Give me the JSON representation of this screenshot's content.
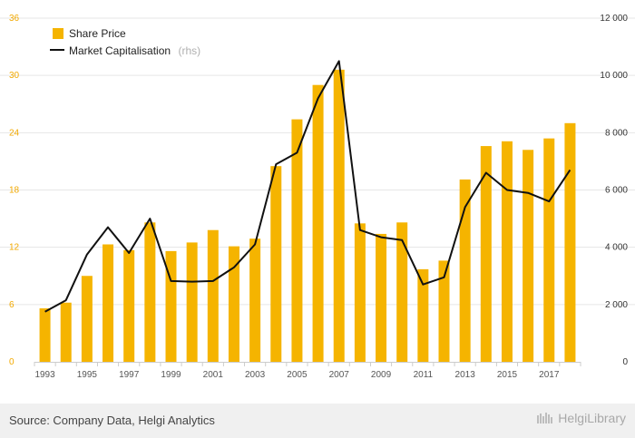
{
  "chart_data": {
    "type": "bar+line",
    "categories": [
      "1993",
      "1994",
      "1995",
      "1996",
      "1997",
      "1998",
      "1999",
      "2000",
      "2001",
      "2002",
      "2003",
      "2004",
      "2005",
      "2006",
      "2007",
      "2008",
      "2009",
      "2010",
      "2011",
      "2012",
      "2013",
      "2014",
      "2015",
      "2016",
      "2017",
      "2018"
    ],
    "x_tick_labels": [
      "1993",
      "1995",
      "1997",
      "1999",
      "2001",
      "2003",
      "2005",
      "2007",
      "2009",
      "2011",
      "2013",
      "2015",
      "2017"
    ],
    "series": [
      {
        "name": "Share Price",
        "kind": "bar",
        "axis": "left",
        "color": "#f5b400",
        "values": [
          5.6,
          6.2,
          9.0,
          12.3,
          11.7,
          14.6,
          11.6,
          12.5,
          13.8,
          12.1,
          12.9,
          20.5,
          25.4,
          29.0,
          30.6,
          14.5,
          13.4,
          14.6,
          9.7,
          10.6,
          19.1,
          22.6,
          23.1,
          22.2,
          23.4,
          25.0
        ]
      },
      {
        "name": "Market Capitalisation",
        "name_suffix": "(rhs)",
        "kind": "line",
        "axis": "right",
        "color": "#111111",
        "values": [
          1750,
          2150,
          3750,
          4700,
          3800,
          5000,
          2820,
          2800,
          2820,
          3300,
          4100,
          6900,
          7300,
          9200,
          10500,
          4600,
          4350,
          4250,
          2700,
          2950,
          5400,
          6600,
          6000,
          5900,
          5600,
          6700
        ]
      }
    ],
    "y_left": {
      "min": 0,
      "max": 36,
      "ticks": [
        0,
        6,
        12,
        18,
        24,
        30,
        36
      ]
    },
    "y_right": {
      "min": 0,
      "max": 12000,
      "ticks": [
        0,
        2000,
        4000,
        6000,
        8000,
        10000,
        12000
      ],
      "tick_labels": [
        "0",
        "2 000",
        "4 000",
        "6 000",
        "8 000",
        "10 000",
        "12 000"
      ]
    },
    "grid": true,
    "legend_position": "top-left"
  },
  "footer": {
    "source": "Source: Company Data, Helgi Analytics",
    "logo_text": "HelgiLibrary"
  }
}
